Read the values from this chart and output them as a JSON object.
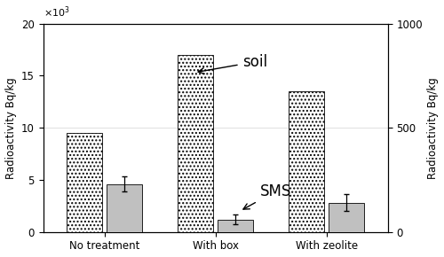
{
  "categories": [
    "No treatment",
    "With box",
    "With zeolite"
  ],
  "soil_values": [
    9500,
    17000,
    13500
  ],
  "sms_values": [
    230,
    60,
    140
  ],
  "sms_errors": [
    35,
    25,
    40
  ],
  "ylim_left": [
    0,
    20000
  ],
  "ylim_right": [
    0,
    1000
  ],
  "ylabel_left": "Radioactivity Bq/kg",
  "ylabel_right": "Radioactivity Bq/kg",
  "soil_label": "soil",
  "sms_label": "SMS",
  "soil_color": "#c8c8c8",
  "sms_color": "#c0c0c0",
  "soil_hatch": "....",
  "bar_width": 0.32,
  "background_color": "#ffffff",
  "tick_label_fontsize": 8.5,
  "axis_label_fontsize": 8.5,
  "annotation_fontsize": 12,
  "group_positions": [
    0.0,
    1.0,
    2.0
  ]
}
